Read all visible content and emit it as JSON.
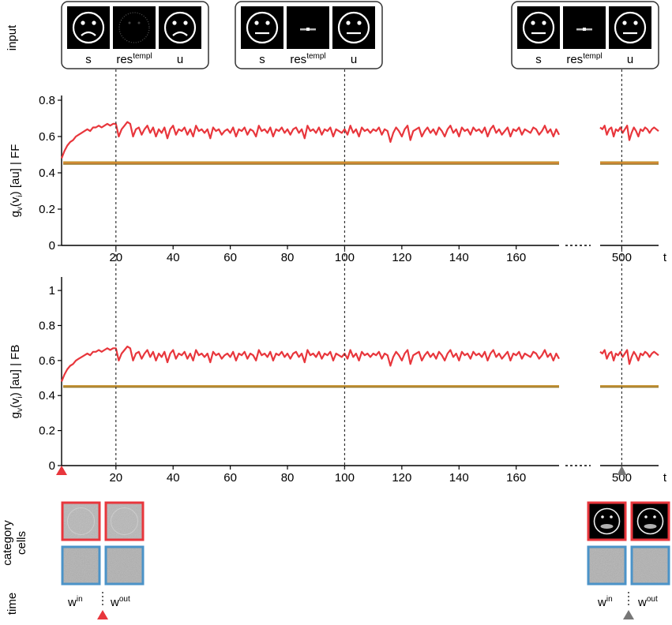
{
  "labels": {
    "input": "input",
    "category_cells": [
      "category",
      "cells"
    ],
    "time": "time"
  },
  "input_panels": [
    {
      "labels": [
        "s",
        "res",
        "u"
      ],
      "res_superscript": "templ",
      "faces": [
        "frown",
        "noise",
        "frown"
      ]
    },
    {
      "labels": [
        "s",
        "res",
        "u"
      ],
      "res_superscript": "templ",
      "faces": [
        "neutral",
        "bar",
        "neutral"
      ]
    },
    {
      "labels": [
        "s",
        "res",
        "u"
      ],
      "res_superscript": "templ",
      "faces": [
        "neutral",
        "bar",
        "neutral"
      ]
    }
  ],
  "weights_left": {
    "win": "w",
    "win_sup": "in",
    "wout": "w",
    "wout_sup": "out"
  },
  "weights_right": {
    "win": "w",
    "win_sup": "in",
    "wout": "w",
    "wout_sup": "out"
  },
  "colors": {
    "red": "#e8363c",
    "orange": "#e07b22",
    "olive": "#9a7b2c",
    "tan": "#c79a3e",
    "blue": "#4b93c8",
    "marker_red": "#e8363c",
    "marker_gray": "#777777"
  },
  "chart_data": [
    {
      "type": "line",
      "ylabel": "g_v(v_i) [au] | FF",
      "ylabel_main": "g",
      "ylabel_sub1": "v",
      "ylabel_mid": "(v",
      "ylabel_sub2": "i",
      "ylabel_tail": ") [au] | FF",
      "xlabel": "t",
      "ylim": [
        0,
        0.8
      ],
      "yticks": [
        "0",
        "0.2",
        "0.4",
        "0.6",
        "0.8"
      ],
      "xticks_main": [
        "20",
        "40",
        "60",
        "80",
        "100",
        "120",
        "140",
        "160"
      ],
      "xticks_break": [
        "500"
      ],
      "xlim_main": [
        1,
        175
      ],
      "xlim_break": [
        490,
        517
      ],
      "vlines": [
        20,
        100,
        500
      ],
      "series_red_main": [
        0.48,
        0.52,
        0.55,
        0.57,
        0.58,
        0.6,
        0.61,
        0.62,
        0.63,
        0.64,
        0.63,
        0.65,
        0.65,
        0.66,
        0.65,
        0.66,
        0.67,
        0.66,
        0.67,
        0.67,
        0.6,
        0.64,
        0.66,
        0.68,
        0.67,
        0.6,
        0.64,
        0.65,
        0.61,
        0.64,
        0.66,
        0.62,
        0.65,
        0.6,
        0.64,
        0.62,
        0.65,
        0.59,
        0.64,
        0.66,
        0.61,
        0.64,
        0.63,
        0.65,
        0.61,
        0.64,
        0.6,
        0.66,
        0.63,
        0.64,
        0.62,
        0.64,
        0.59,
        0.65,
        0.63,
        0.64,
        0.61,
        0.63,
        0.64,
        0.62,
        0.65,
        0.6,
        0.64,
        0.63,
        0.65,
        0.61,
        0.64,
        0.63,
        0.6,
        0.66,
        0.63,
        0.64,
        0.62,
        0.65,
        0.6,
        0.64,
        0.63,
        0.65,
        0.62,
        0.64,
        0.61,
        0.64,
        0.65,
        0.62,
        0.64,
        0.59,
        0.66,
        0.63,
        0.64,
        0.62,
        0.65,
        0.61,
        0.64,
        0.63,
        0.65,
        0.6,
        0.64,
        0.63,
        0.62,
        0.64,
        0.61,
        0.66,
        0.62,
        0.64,
        0.6,
        0.65,
        0.63,
        0.64,
        0.62,
        0.64,
        0.63,
        0.65,
        0.61,
        0.64,
        0.63,
        0.57,
        0.62,
        0.65,
        0.63,
        0.6,
        0.64,
        0.66,
        0.58,
        0.63,
        0.64,
        0.65,
        0.6,
        0.63,
        0.65,
        0.62,
        0.64,
        0.61,
        0.65,
        0.63,
        0.6,
        0.64,
        0.66,
        0.62,
        0.64,
        0.6,
        0.65,
        0.63,
        0.64,
        0.61,
        0.65,
        0.63,
        0.64,
        0.62,
        0.65,
        0.6,
        0.64,
        0.66,
        0.62,
        0.64,
        0.61,
        0.63,
        0.65,
        0.6,
        0.64,
        0.63,
        0.65,
        0.61,
        0.64,
        0.63,
        0.62,
        0.65,
        0.64,
        0.61,
        0.63,
        0.66,
        0.62,
        0.64,
        0.6,
        0.64,
        0.61
      ],
      "series_red_break": [
        0.65,
        0.64,
        0.66,
        0.61,
        0.64,
        0.65,
        0.6,
        0.64,
        0.63,
        0.65,
        0.62,
        0.64,
        0.66,
        0.58,
        0.62,
        0.65,
        0.63,
        0.6,
        0.64,
        0.63,
        0.65,
        0.64,
        0.62,
        0.64,
        0.65,
        0.64,
        0.63
      ],
      "flat_series": [
        {
          "color": "orange",
          "value": 0.455
        },
        {
          "color": "olive",
          "value": 0.448
        },
        {
          "color": "tan",
          "value": 0.46
        }
      ]
    },
    {
      "type": "line",
      "ylabel": "g_v(v_i) [au] | FB",
      "ylabel_main": "g",
      "ylabel_sub1": "v",
      "ylabel_mid": "(v",
      "ylabel_sub2": "i",
      "ylabel_tail": ") [au] | FB",
      "xlabel": "t",
      "ylim": [
        0,
        1.05
      ],
      "yticks": [
        "0",
        "0.2",
        "0.4",
        "0.6",
        "0.8",
        "1"
      ],
      "xticks_main": [
        "20",
        "40",
        "60",
        "80",
        "100",
        "120",
        "140",
        "160"
      ],
      "xticks_break": [
        "500"
      ],
      "xlim_main": [
        1,
        175
      ],
      "xlim_break": [
        490,
        517
      ],
      "vlines": [
        20,
        100,
        500
      ],
      "series_red_main": [
        0.48,
        0.52,
        0.55,
        0.57,
        0.58,
        0.6,
        0.61,
        0.62,
        0.63,
        0.64,
        0.63,
        0.65,
        0.65,
        0.66,
        0.65,
        0.66,
        0.67,
        0.66,
        0.67,
        0.67,
        0.6,
        0.64,
        0.66,
        0.68,
        0.67,
        0.6,
        0.64,
        0.65,
        0.61,
        0.64,
        0.66,
        0.62,
        0.65,
        0.6,
        0.64,
        0.62,
        0.65,
        0.59,
        0.64,
        0.66,
        0.61,
        0.64,
        0.63,
        0.65,
        0.61,
        0.64,
        0.6,
        0.66,
        0.63,
        0.64,
        0.62,
        0.64,
        0.59,
        0.65,
        0.63,
        0.64,
        0.61,
        0.63,
        0.64,
        0.62,
        0.65,
        0.6,
        0.64,
        0.63,
        0.65,
        0.61,
        0.64,
        0.63,
        0.6,
        0.66,
        0.63,
        0.64,
        0.62,
        0.65,
        0.6,
        0.64,
        0.63,
        0.65,
        0.62,
        0.64,
        0.61,
        0.64,
        0.65,
        0.62,
        0.64,
        0.59,
        0.66,
        0.63,
        0.64,
        0.62,
        0.65,
        0.61,
        0.64,
        0.63,
        0.65,
        0.6,
        0.64,
        0.63,
        0.62,
        0.64,
        0.61,
        0.66,
        0.62,
        0.64,
        0.6,
        0.65,
        0.63,
        0.64,
        0.62,
        0.64,
        0.63,
        0.65,
        0.61,
        0.64,
        0.63,
        0.57,
        0.62,
        0.65,
        0.63,
        0.6,
        0.64,
        0.66,
        0.58,
        0.63,
        0.64,
        0.65,
        0.6,
        0.63,
        0.65,
        0.62,
        0.64,
        0.61,
        0.65,
        0.63,
        0.6,
        0.64,
        0.66,
        0.62,
        0.64,
        0.6,
        0.65,
        0.63,
        0.64,
        0.61,
        0.65,
        0.63,
        0.64,
        0.62,
        0.65,
        0.6,
        0.64,
        0.66,
        0.62,
        0.64,
        0.61,
        0.63,
        0.65,
        0.6,
        0.64,
        0.63,
        0.65,
        0.61,
        0.64,
        0.63,
        0.62,
        0.65,
        0.64,
        0.61,
        0.63,
        0.66,
        0.62,
        0.64,
        0.6,
        0.64,
        0.61
      ],
      "series_red_break": [
        0.65,
        0.64,
        0.66,
        0.61,
        0.64,
        0.65,
        0.6,
        0.64,
        0.63,
        0.65,
        0.62,
        0.64,
        0.66,
        0.58,
        0.62,
        0.65,
        0.63,
        0.6,
        0.64,
        0.63,
        0.65,
        0.64,
        0.62,
        0.64,
        0.65,
        0.64,
        0.63
      ],
      "flat_series": [
        {
          "color": "orange",
          "value": 0.452
        },
        {
          "color": "olive",
          "value": 0.448
        },
        {
          "color": "tan",
          "value": 0.456
        }
      ]
    }
  ]
}
